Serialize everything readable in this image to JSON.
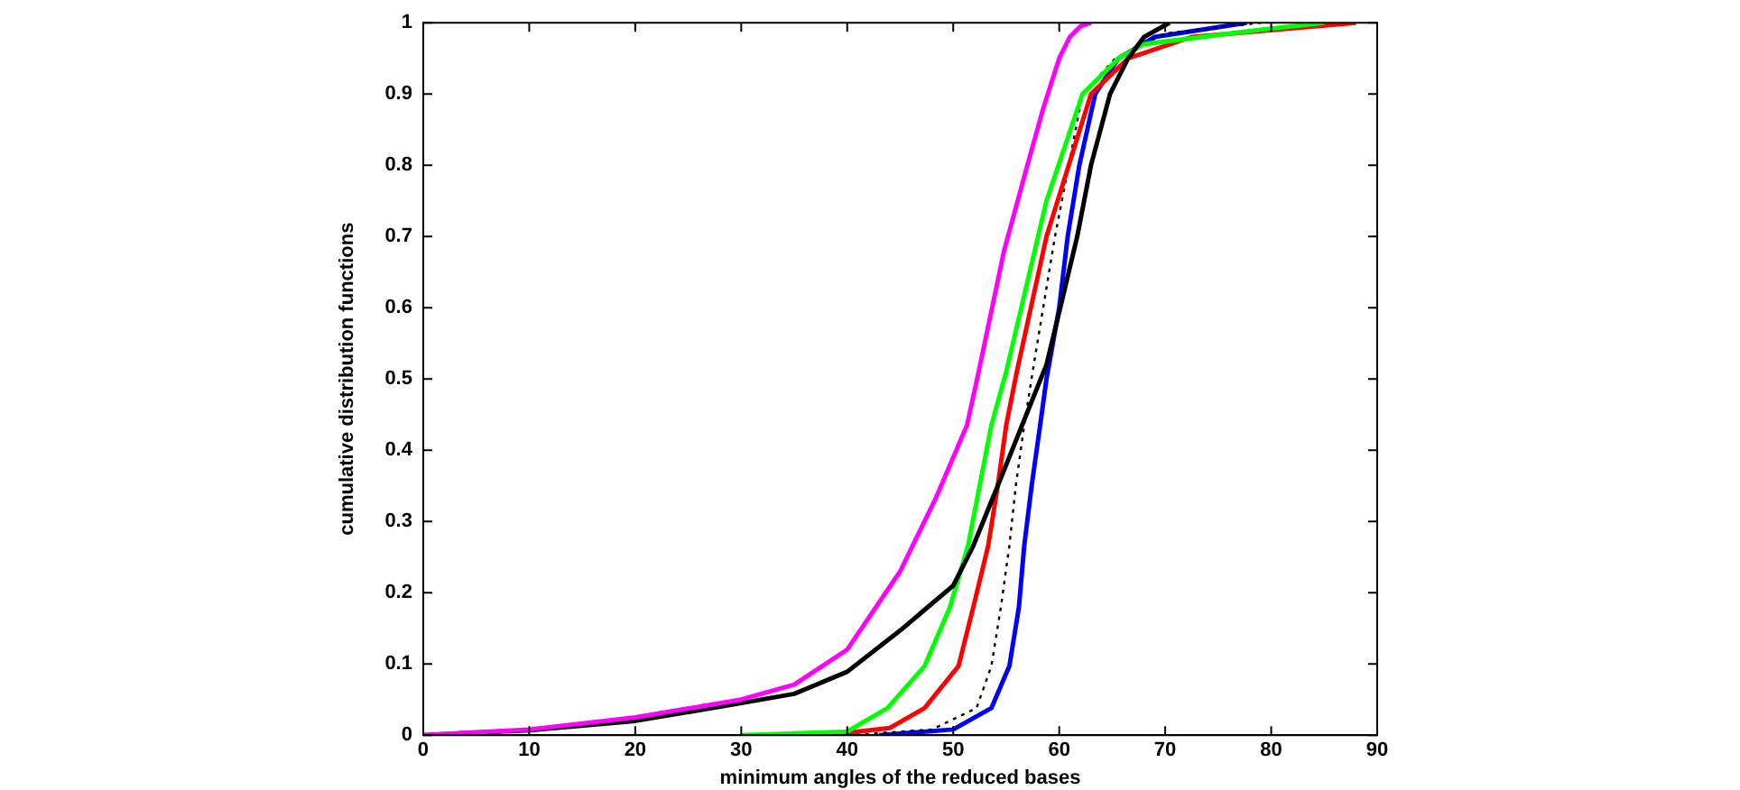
{
  "chart_data": {
    "type": "line",
    "xlabel": "minimum angles of the reduced bases",
    "ylabel": "cumulative distribution functions",
    "xlim": [
      0,
      90
    ],
    "ylim": [
      0,
      1
    ],
    "xticks": [
      0,
      10,
      20,
      30,
      40,
      50,
      60,
      70,
      80,
      90
    ],
    "yticks": [
      0,
      0.1,
      0.2,
      0.3,
      0.4,
      0.5,
      0.6,
      0.7,
      0.8,
      0.9,
      1
    ],
    "grid": false,
    "legend": false,
    "marker": "none",
    "series": [
      {
        "color": "#ff00ff",
        "x": [
          0,
          10,
          20,
          30,
          35,
          40,
          45,
          48.4,
          51.3,
          52.4,
          54.8,
          57,
          58.5,
          60,
          61,
          62,
          63
        ],
        "values": [
          0,
          0.008,
          0.025,
          0.05,
          0.071,
          0.12,
          0.23,
          0.334,
          0.435,
          0.51,
          0.68,
          0.8,
          0.88,
          0.95,
          0.98,
          0.995,
          1
        ]
      },
      {
        "color": "#000000",
        "x": [
          0,
          10,
          20,
          30,
          35,
          40,
          45,
          50,
          51.9,
          54.2,
          56.5,
          58.8,
          60.1,
          61.7,
          63,
          64.8,
          66.5,
          68,
          70.4
        ],
        "values": [
          0,
          0.007,
          0.02,
          0.045,
          0.058,
          0.089,
          0.147,
          0.21,
          0.266,
          0.35,
          0.435,
          0.52,
          0.6,
          0.7,
          0.8,
          0.9,
          0.95,
          0.98,
          1
        ]
      },
      {
        "color": "#00ff00",
        "x": [
          30,
          40,
          43.8,
          47.3,
          49.7,
          51.4,
          53.6,
          55,
          58.8,
          62.2,
          65.6,
          68,
          79,
          85
        ],
        "values": [
          0,
          0.005,
          0.038,
          0.097,
          0.18,
          0.266,
          0.435,
          0.51,
          0.75,
          0.9,
          0.95,
          0.97,
          0.99,
          1
        ]
      },
      {
        "color": "#ff0000",
        "x": [
          38,
          44,
          47.3,
          50.5,
          51.9,
          53.3,
          54.2,
          55,
          56,
          58.8,
          63,
          66.5,
          72.5,
          88
        ],
        "values": [
          0,
          0.01,
          0.038,
          0.097,
          0.18,
          0.266,
          0.35,
          0.435,
          0.51,
          0.7,
          0.9,
          0.95,
          0.98,
          1
        ]
      },
      {
        "color": "#000000",
        "line_style": "dotted",
        "x": [
          40,
          48,
          52.2,
          53.6,
          54.5,
          55.3,
          55.9,
          56.7,
          57.6,
          59.6,
          62.2,
          65.3,
          70,
          79
        ],
        "values": [
          0,
          0.008,
          0.038,
          0.097,
          0.18,
          0.266,
          0.35,
          0.435,
          0.52,
          0.7,
          0.9,
          0.95,
          0.985,
          1
        ]
      },
      {
        "color": "#0000ff",
        "x": [
          43,
          50,
          53.6,
          55.3,
          56.2,
          56.7,
          57.4,
          58.2,
          58.8,
          60,
          60.8,
          61.9,
          63.4,
          65.6,
          69,
          77.7
        ],
        "values": [
          0,
          0.008,
          0.038,
          0.097,
          0.18,
          0.266,
          0.35,
          0.435,
          0.5,
          0.6,
          0.7,
          0.8,
          0.9,
          0.95,
          0.98,
          1
        ]
      }
    ]
  }
}
